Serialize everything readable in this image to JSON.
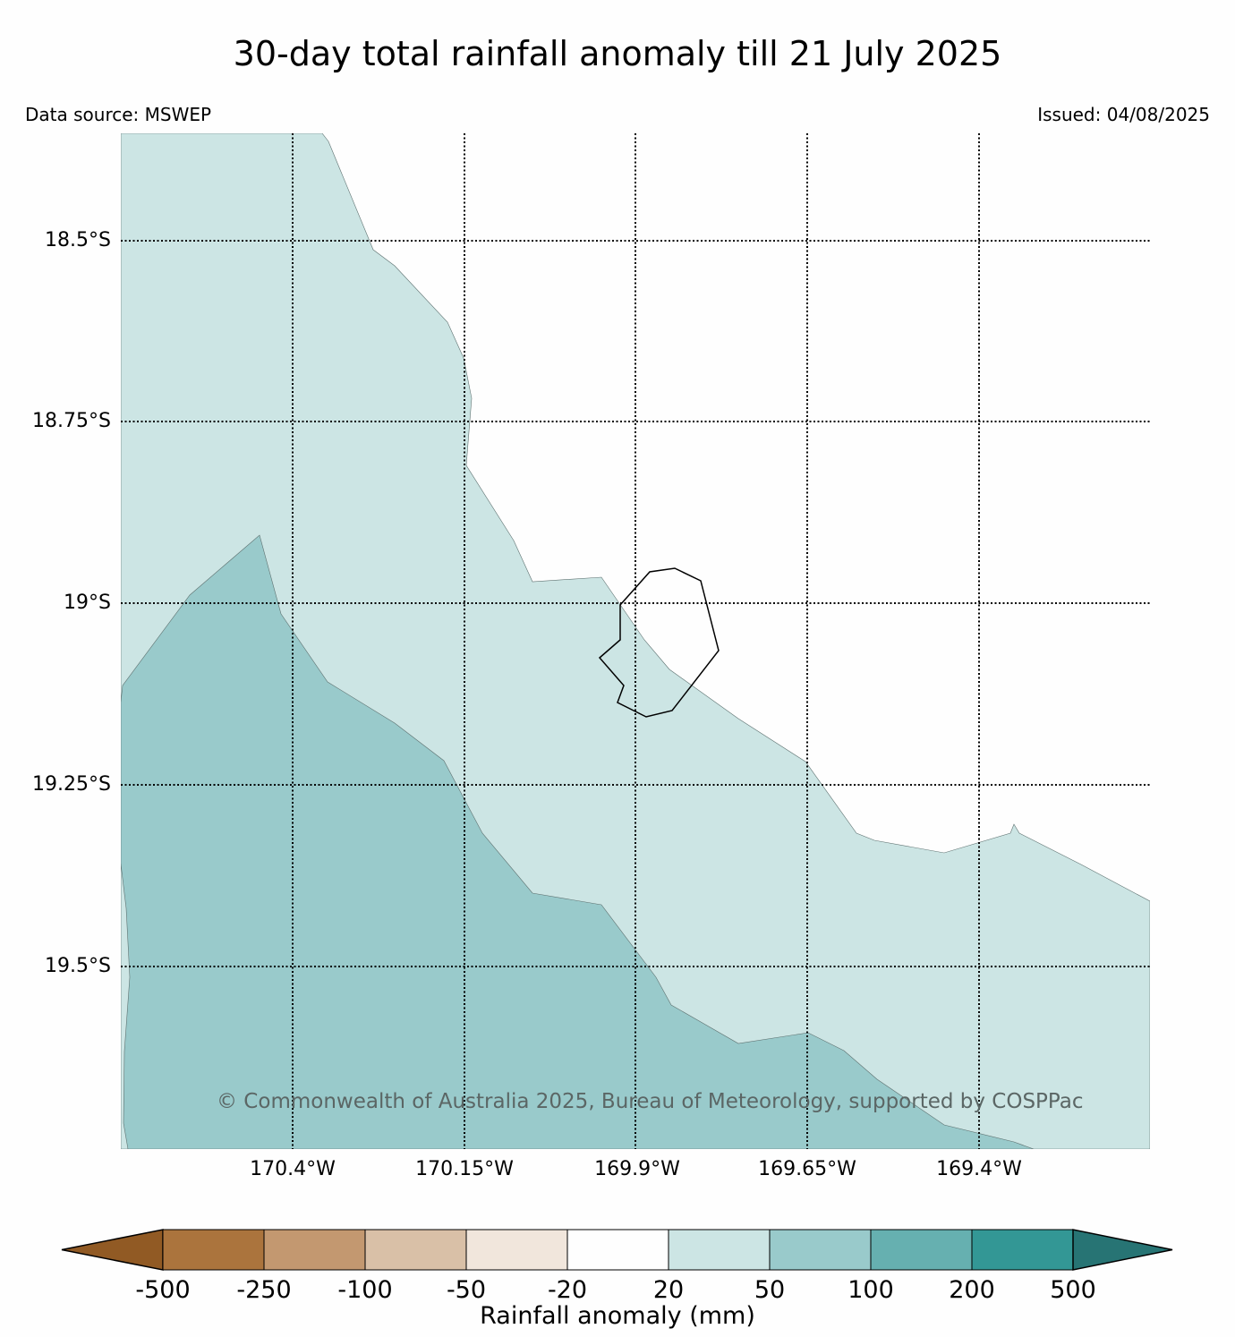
{
  "header": {
    "title": "30-day total rainfall anomaly till 21 July 2025",
    "data_source": "Data source: MSWEP",
    "issued": "Issued: 04/08/2025"
  },
  "map": {
    "latitude_labels": [
      "18.5°S",
      "18.75°S",
      "19°S",
      "19.25°S",
      "19.5°S"
    ],
    "longitude_labels": [
      "170.4°W",
      "170.15°W",
      "169.9°W",
      "169.65°W",
      "169.4°W"
    ],
    "gridlines": "dotted",
    "island": "Niue outline",
    "fill_classes": [
      {
        "range": "20 to 50",
        "color": "#cce5e4"
      },
      {
        "range": "50 to 100",
        "color": "#99cacb"
      },
      {
        "range": "-20 to 20",
        "color": "#fefefe"
      }
    ],
    "copyright": "© Commonwealth of Australia 2025, Bureau of Meteorology, supported by COSPPac"
  },
  "colorbar": {
    "label": "Rainfall anomaly (mm)",
    "ticks": [
      "-500",
      "-250",
      "-100",
      "-50",
      "-20",
      "20",
      "50",
      "100",
      "200",
      "500"
    ],
    "colors": [
      "#915a24",
      "#ab743d",
      "#c39870",
      "#d9c0a7",
      "#f1e6dc",
      "#fefefe",
      "#cce5e4",
      "#99cacb",
      "#66b0b0",
      "#339795",
      "#277474"
    ],
    "extend": "both"
  }
}
